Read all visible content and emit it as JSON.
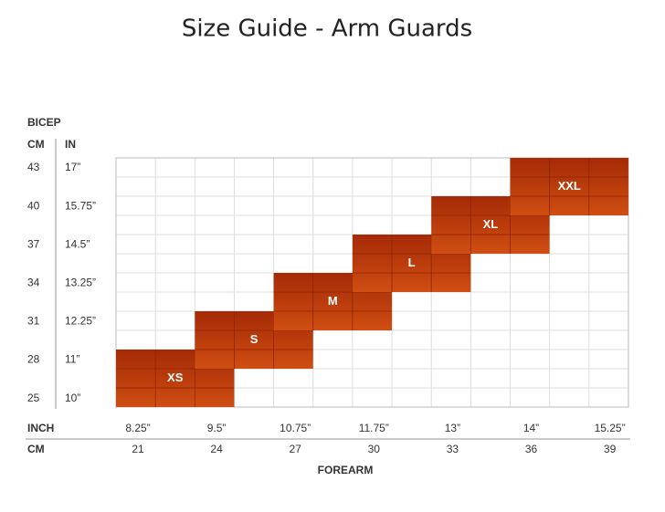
{
  "title": "Size Guide - Arm Guards",
  "bicep": {
    "label": "BICEP",
    "cm_header": "CM",
    "in_header": "IN",
    "rows": [
      {
        "cm": "43",
        "in": "17”"
      },
      {
        "cm": "40",
        "in": "15.75”"
      },
      {
        "cm": "37",
        "in": "14.5”"
      },
      {
        "cm": "34",
        "in": "13.25”"
      },
      {
        "cm": "31",
        "in": "12.25”"
      },
      {
        "cm": "28",
        "in": "11”"
      },
      {
        "cm": "25",
        "in": "10”"
      }
    ]
  },
  "forearm": {
    "label": "FOREARM",
    "inch_header": "INCH",
    "cm_header": "CM",
    "columns": [
      {
        "in": "8.25”",
        "cm": "21"
      },
      {
        "in": "9.5”",
        "cm": "24"
      },
      {
        "in": "10.75”",
        "cm": "27"
      },
      {
        "in": "11.75”",
        "cm": "30"
      },
      {
        "in": "13”",
        "cm": "33"
      },
      {
        "in": "14”",
        "cm": "36"
      },
      {
        "in": "15.25”",
        "cm": "39"
      }
    ]
  },
  "sizes": [
    "XS",
    "S",
    "M",
    "L",
    "XL",
    "XXL"
  ]
}
